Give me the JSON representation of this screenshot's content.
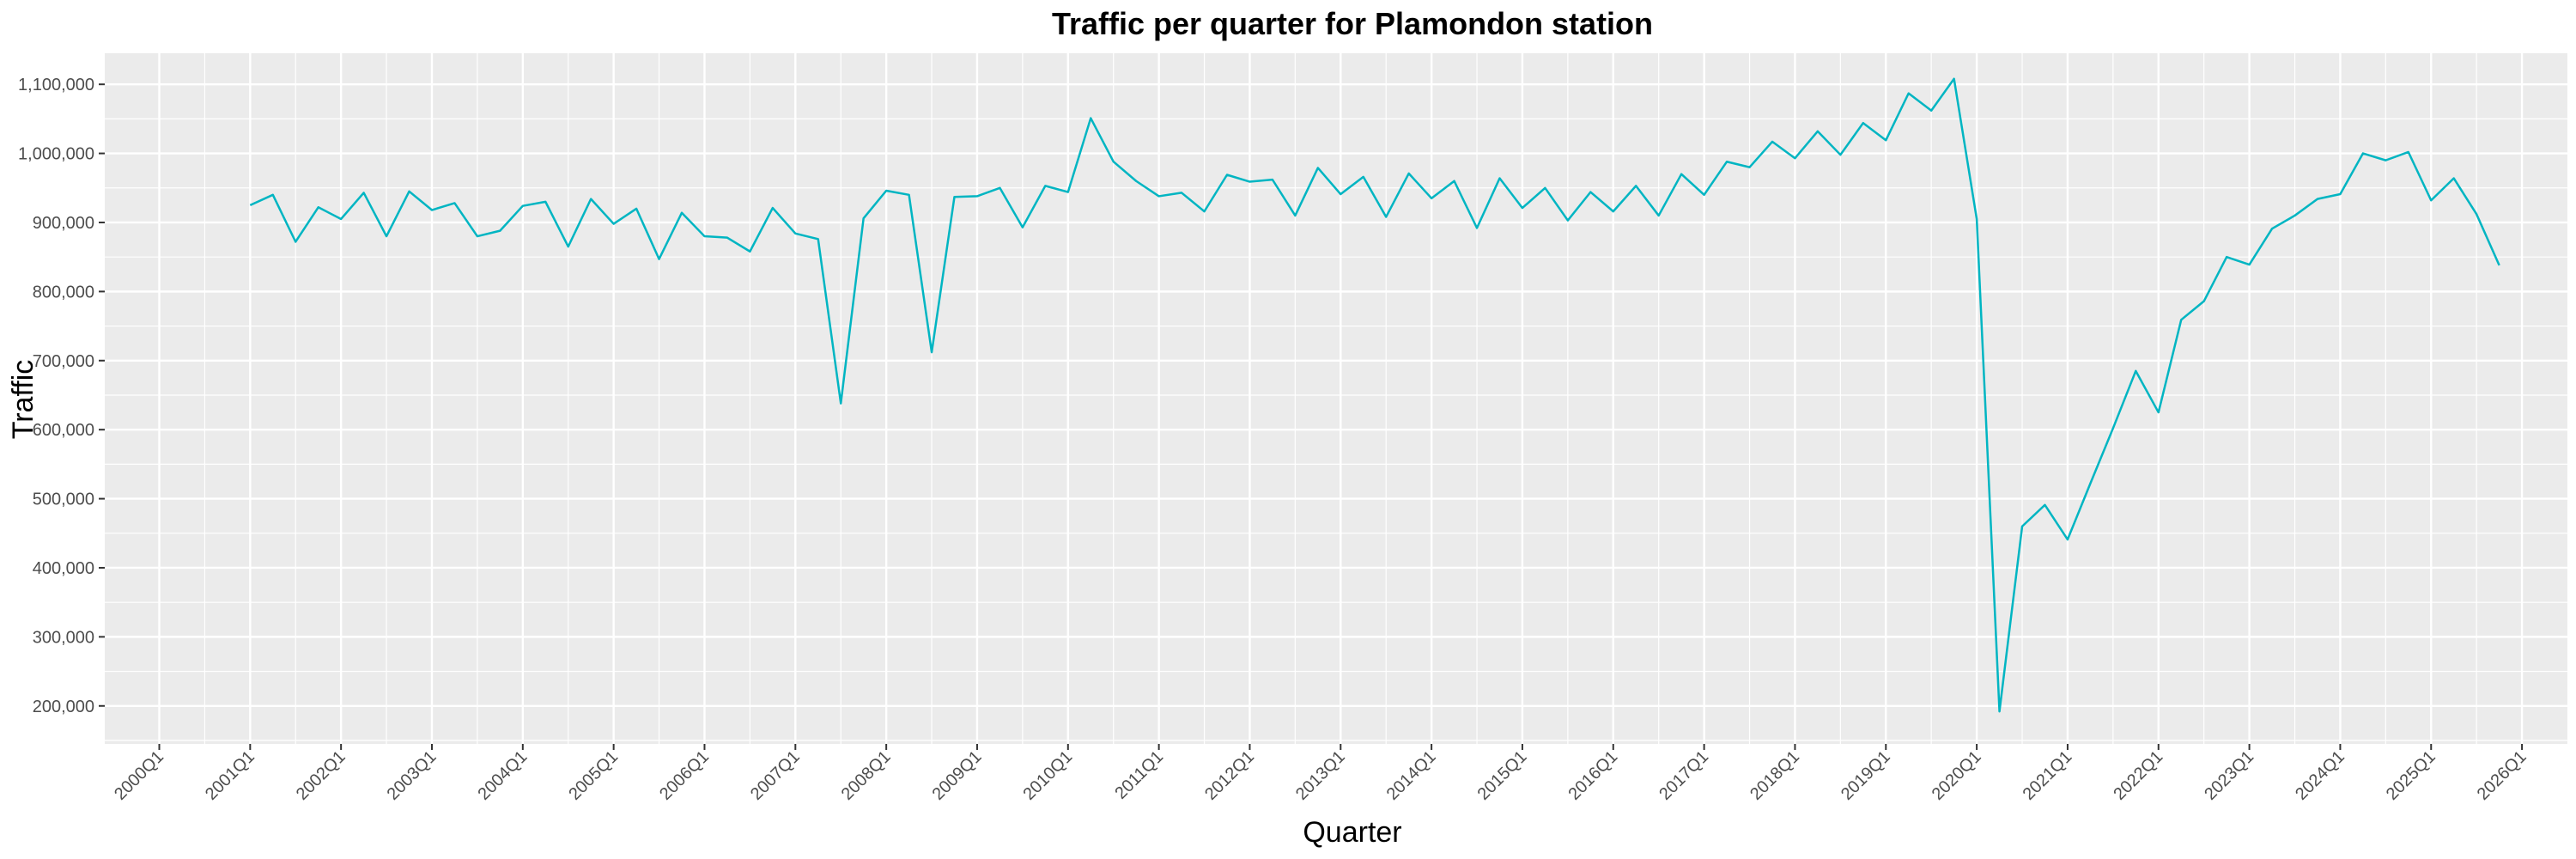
{
  "chart_data": {
    "type": "line",
    "title": "Traffic per quarter for Plamondon station",
    "xlabel": "Quarter",
    "ylabel": "Traffic",
    "x_ticks": [
      "2000Q1",
      "2001Q1",
      "2002Q1",
      "2003Q1",
      "2004Q1",
      "2005Q1",
      "2006Q1",
      "2007Q1",
      "2008Q1",
      "2009Q1",
      "2010Q1",
      "2011Q1",
      "2012Q1",
      "2013Q1",
      "2014Q1",
      "2015Q1",
      "2016Q1",
      "2017Q1",
      "2018Q1",
      "2019Q1",
      "2020Q1",
      "2021Q1",
      "2022Q1",
      "2023Q1",
      "2024Q1",
      "2025Q1",
      "2026Q1"
    ],
    "y_ticks": [
      200000,
      300000,
      400000,
      500000,
      600000,
      700000,
      800000,
      900000,
      1000000,
      1100000
    ],
    "y_tick_labels": [
      "200,000",
      "300,000",
      "400,000",
      "500,000",
      "600,000",
      "700,000",
      "800,000",
      "900,000",
      "1,000,000",
      "1,100,000"
    ],
    "xlim": [
      "2000Q1",
      "2026Q1"
    ],
    "ylim": [
      145000,
      1145000
    ],
    "grid": true,
    "series_color": "#00b5c2",
    "panel_background": "#ebebeb",
    "grid_color": "#ffffff",
    "x": [
      "2001Q1",
      "2001Q2",
      "2001Q3",
      "2001Q4",
      "2002Q1",
      "2002Q2",
      "2002Q3",
      "2002Q4",
      "2003Q1",
      "2003Q2",
      "2003Q3",
      "2003Q4",
      "2004Q1",
      "2004Q2",
      "2004Q3",
      "2004Q4",
      "2005Q1",
      "2005Q2",
      "2005Q3",
      "2005Q4",
      "2006Q1",
      "2006Q2",
      "2006Q3",
      "2006Q4",
      "2007Q1",
      "2007Q2",
      "2007Q3",
      "2007Q4",
      "2008Q1",
      "2008Q2",
      "2008Q3",
      "2008Q4",
      "2009Q1",
      "2009Q2",
      "2009Q3",
      "2009Q4",
      "2010Q1",
      "2010Q2",
      "2010Q3",
      "2010Q4",
      "2011Q1",
      "2011Q2",
      "2011Q3",
      "2011Q4",
      "2012Q1",
      "2012Q2",
      "2012Q3",
      "2012Q4",
      "2013Q1",
      "2013Q2",
      "2013Q3",
      "2013Q4",
      "2014Q1",
      "2014Q2",
      "2014Q3",
      "2014Q4",
      "2015Q1",
      "2015Q2",
      "2015Q3",
      "2015Q4",
      "2016Q1",
      "2016Q2",
      "2016Q3",
      "2016Q4",
      "2017Q1",
      "2017Q2",
      "2017Q3",
      "2017Q4",
      "2018Q1",
      "2018Q2",
      "2018Q3",
      "2018Q4",
      "2019Q1",
      "2019Q2",
      "2019Q3",
      "2019Q4",
      "2020Q1",
      "2020Q2",
      "2020Q3",
      "2020Q4",
      "2021Q1",
      "2021Q2",
      "2021Q3",
      "2021Q4",
      "2022Q1",
      "2022Q2",
      "2022Q3",
      "2022Q4",
      "2023Q1",
      "2023Q2",
      "2023Q3",
      "2023Q4",
      "2024Q1",
      "2024Q2",
      "2024Q3",
      "2024Q4",
      "2025Q1",
      "2025Q2",
      "2025Q3",
      "2025Q4"
    ],
    "values": [
      925000,
      940000,
      872000,
      922000,
      905000,
      943000,
      880000,
      945000,
      918000,
      928000,
      880000,
      888000,
      924000,
      930000,
      865000,
      934000,
      898000,
      920000,
      847000,
      914000,
      880000,
      878000,
      858000,
      921000,
      884000,
      876000,
      638000,
      906000,
      946000,
      940000,
      712000,
      937000,
      938000,
      950000,
      893000,
      953000,
      944000,
      1051000,
      988000,
      960000,
      938000,
      943000,
      916000,
      969000,
      959000,
      962000,
      910000,
      979000,
      941000,
      966000,
      908000,
      971000,
      935000,
      960000,
      892000,
      964000,
      921000,
      950000,
      903000,
      944000,
      916000,
      953000,
      910000,
      970000,
      940000,
      988000,
      980000,
      1017000,
      993000,
      1032000,
      998000,
      1044000,
      1019000,
      1087000,
      1062000,
      1108000,
      905000,
      192000,
      460000,
      491000,
      441000,
      522000,
      602000,
      685000,
      625000,
      759000,
      786000,
      850000,
      839000,
      891000,
      910000,
      934000,
      941000,
      1000000,
      990000,
      1002000,
      932000,
      964000,
      912000,
      838000
    ]
  }
}
